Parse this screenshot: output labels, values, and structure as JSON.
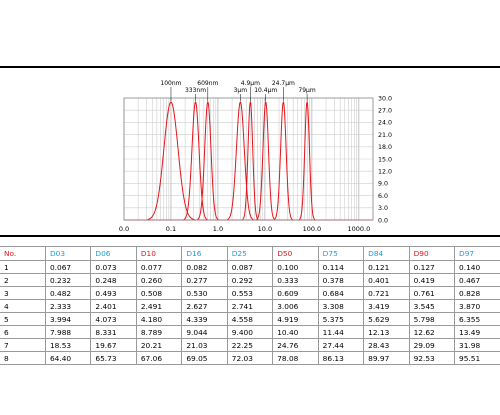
{
  "chart_data": {
    "type": "line",
    "x_scale": "log",
    "xlim": [
      0.01,
      2000
    ],
    "ylim": [
      0,
      30
    ],
    "x_ticks": [
      "0.0",
      "0.1",
      "1.0",
      "10.0",
      "100.0",
      "1000.0"
    ],
    "y_ticks": [
      "0.0",
      "3.0",
      "6.0",
      "9.0",
      "12.0",
      "15.0",
      "18.0",
      "21.0",
      "24.0",
      "27.0",
      "30.0"
    ],
    "y_axis_side": "right",
    "grid": true,
    "line_color": "#e4151b",
    "series": [
      {
        "peak_x": 0.1,
        "peak_y": 29.0,
        "span": 0.36
      },
      {
        "peak_x": 0.333,
        "peak_y": 29.0,
        "span": 0.18
      },
      {
        "peak_x": 0.609,
        "peak_y": 29.0,
        "span": 0.16
      },
      {
        "peak_x": 3.0,
        "peak_y": 29.0,
        "span": 0.2
      },
      {
        "peak_x": 4.9,
        "peak_y": 29.0,
        "span": 0.12
      },
      {
        "peak_x": 10.4,
        "peak_y": 29.0,
        "span": 0.14
      },
      {
        "peak_x": 24.7,
        "peak_y": 29.0,
        "span": 0.14
      },
      {
        "peak_x": 79,
        "peak_y": 29.0,
        "span": 0.12
      }
    ],
    "annotations": [
      {
        "text": "100nm",
        "x": 0.1,
        "row": 1
      },
      {
        "text": "333nm",
        "x": 0.333,
        "row": 2
      },
      {
        "text": "609nm",
        "x": 0.609,
        "row": 1
      },
      {
        "text": "3μm",
        "x": 3.0,
        "row": 2
      },
      {
        "text": "4.9μm",
        "x": 4.9,
        "row": 1
      },
      {
        "text": "10.4μm",
        "x": 10.4,
        "row": 2
      },
      {
        "text": "24.7μm",
        "x": 24.7,
        "row": 1
      },
      {
        "text": "79μm",
        "x": 79,
        "row": 2
      }
    ]
  },
  "table": {
    "headers": [
      {
        "label": "No.",
        "color": "red"
      },
      {
        "label": "D03",
        "color": "blue"
      },
      {
        "label": "D06",
        "color": "blue"
      },
      {
        "label": "D10",
        "color": "red"
      },
      {
        "label": "D16",
        "color": "blue"
      },
      {
        "label": "D25",
        "color": "blue"
      },
      {
        "label": "D50",
        "color": "red"
      },
      {
        "label": "D75",
        "color": "blue"
      },
      {
        "label": "D84",
        "color": "blue"
      },
      {
        "label": "D90",
        "color": "red"
      },
      {
        "label": "D97",
        "color": "blue"
      }
    ],
    "rows": [
      [
        "1",
        "0.067",
        "0.073",
        "0.077",
        "0.082",
        "0.087",
        "0.100",
        "0.114",
        "0.121",
        "0.127",
        "0.140"
      ],
      [
        "2",
        "0.232",
        "0.248",
        "0.260",
        "0.277",
        "0.292",
        "0.333",
        "0.378",
        "0.401",
        "0.419",
        "0.467"
      ],
      [
        "3",
        "0.482",
        "0.493",
        "0.508",
        "0.530",
        "0.553",
        "0.609",
        "0.684",
        "0.721",
        "0.761",
        "0.828"
      ],
      [
        "4",
        "2.333",
        "2.401",
        "2.491",
        "2.627",
        "2.741",
        "3.006",
        "3.308",
        "3.419",
        "3.545",
        "3.870"
      ],
      [
        "5",
        "3.994",
        "4.073",
        "4.180",
        "4.339",
        "4.558",
        "4.919",
        "5.375",
        "5.629",
        "5.798",
        "6.355"
      ],
      [
        "6",
        "7.988",
        "8.331",
        "8.789",
        "9.044",
        "9.400",
        "10.40",
        "11.44",
        "12.13",
        "12.62",
        "13.49"
      ],
      [
        "7",
        "18.53",
        "19.67",
        "20.21",
        "21.03",
        "22.25",
        "24.76",
        "27.44",
        "28.43",
        "29.09",
        "31.98"
      ],
      [
        "8",
        "64.40",
        "65.73",
        "67.06",
        "69.05",
        "72.03",
        "78.08",
        "86.13",
        "89.97",
        "92.53",
        "95.51"
      ]
    ]
  }
}
